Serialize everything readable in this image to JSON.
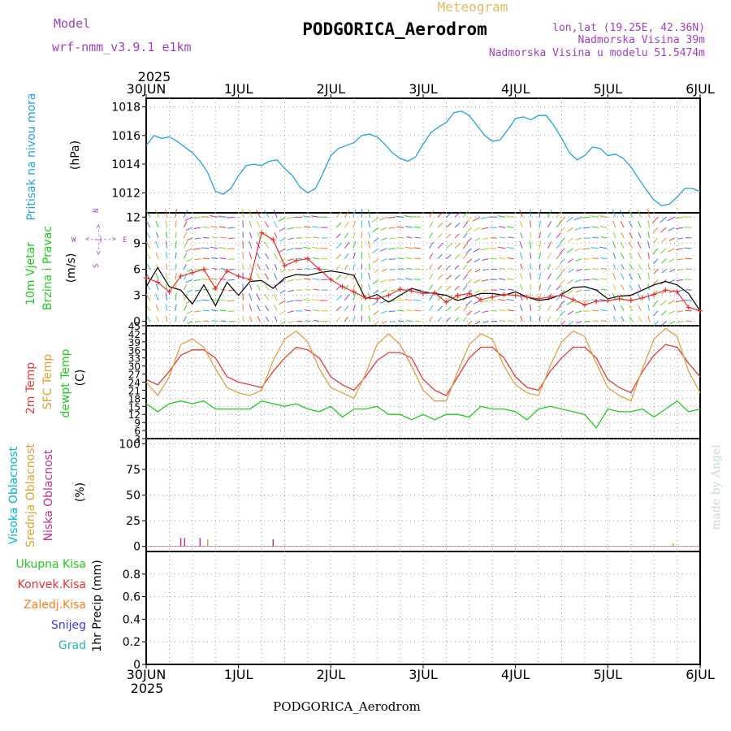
{
  "header": {
    "model_label": "Model",
    "model_name": "wrf-nmm_v3.9.1 e1km",
    "product": "Meteogram",
    "station": "PODGORICA_Aerodrom",
    "lonlat": "lon,lat (19.25E, 42.36N)",
    "elevation": "Nadmorska Visina 39m",
    "model_elevation": "Nadmorska Visina u modelu 51.5474m"
  },
  "footer": {
    "station": "PODGORICA_Aerodrom",
    "credit": "made by Angel"
  },
  "time_axis": {
    "year": "2025",
    "labels": [
      "30JUN",
      "1JUL",
      "2JUL",
      "3JUL",
      "4JUL",
      "5JUL",
      "6JUL"
    ]
  },
  "panels": {
    "pressure": {
      "title": "Pritisak na nivou mora",
      "unit": "(hPa)"
    },
    "wind": {
      "title_1": "10m Vjetar",
      "title_2": "Brzina i Pravac",
      "unit": "(m/s)",
      "compass": {
        "n": "N",
        "s": "S",
        "e": "E",
        "w": "W",
        "arrow_h": "<--|-->",
        "arrow_v": "<--|-->"
      }
    },
    "temp": {
      "title_1": "2m Temp",
      "title_2": "SFC Temp",
      "title_3": "dewpt Temp",
      "unit": "(C)"
    },
    "cloud": {
      "title_1": "Visoka Oblacnost",
      "title_2": "Srednja Oblacnost",
      "title_3": "Niska Oblacnost",
      "unit": "(%)"
    },
    "precip": {
      "legend": [
        "Ukupna Kisa",
        "Konvek.Kisa",
        "Zaledj.Kisa",
        "Snijeg",
        "Grad"
      ],
      "unit": "1hr Precip (mm)"
    }
  },
  "colors": {
    "pressure": "#1fa3e0",
    "wind_speed": "#000000",
    "wind_gust": "#e83030",
    "t2m": "#e63a3a",
    "tsfc": "#e0a040",
    "dewpt": "#22c822",
    "cloud_high": "#00b5d0",
    "cloud_mid": "#e0a030",
    "cloud_low": "#c0308a",
    "rain": "#22c822",
    "conv": "#e83030",
    "frz": "#f08020",
    "snow": "#3a3ae0",
    "hail": "#20b8b0",
    "model": "#a040c0",
    "station": "#000000",
    "product": "#e8b860",
    "info": "#a040c0"
  },
  "chart_data": [
    {
      "type": "line",
      "title": "Pritisak na nivou mora",
      "ylabel": "(hPa)",
      "x_unit": "hours since 30JUN 00UTC",
      "ylim": [
        1010.6,
        1018.6
      ],
      "yticks": [
        1012,
        1014,
        1016,
        1018
      ],
      "series": [
        {
          "color": "#1fa3e0",
          "x": [
            0,
            2,
            4,
            6,
            8,
            10,
            12,
            14,
            16,
            18,
            20,
            22,
            24,
            26,
            28,
            30,
            32,
            34,
            36,
            38,
            40,
            42,
            44,
            46,
            48,
            50,
            52,
            54,
            56,
            58,
            60,
            62,
            64,
            66,
            68,
            70,
            72,
            74,
            76,
            78,
            80,
            82,
            84,
            86,
            88,
            90,
            92,
            94,
            96,
            98,
            100,
            102,
            104,
            106,
            108,
            110,
            112,
            114,
            116,
            118,
            120,
            122,
            124,
            126,
            128,
            130,
            132,
            134,
            136,
            138,
            140,
            142,
            144
          ],
          "y": [
            1015.3,
            1016.0,
            1015.8,
            1015.9,
            1015.6,
            1015.2,
            1014.8,
            1014.2,
            1013.4,
            1012.1,
            1011.9,
            1012.3,
            1013.2,
            1013.9,
            1014.0,
            1013.9,
            1014.2,
            1014.3,
            1013.7,
            1013.2,
            1012.4,
            1012.0,
            1012.3,
            1013.4,
            1014.6,
            1015.1,
            1015.3,
            1015.5,
            1016.0,
            1016.1,
            1015.9,
            1015.4,
            1014.8,
            1014.4,
            1014.2,
            1014.5,
            1015.4,
            1016.2,
            1016.6,
            1016.9,
            1017.6,
            1017.7,
            1017.4,
            1016.7,
            1016.0,
            1015.6,
            1015.7,
            1016.4,
            1017.2,
            1017.3,
            1017.1,
            1017.4,
            1017.4,
            1016.7,
            1015.8,
            1014.8,
            1014.3,
            1014.6,
            1015.2,
            1015.1,
            1014.6,
            1014.7,
            1014.4,
            1013.8,
            1013.0,
            1012.2,
            1011.5,
            1011.1,
            1011.2,
            1011.7,
            1012.3,
            1012.3,
            1012.1
          ]
        }
      ]
    },
    {
      "type": "line",
      "title": "10m Vjetar Brzina i Pravac",
      "ylabel": "(m/s)",
      "x_unit": "hours since 30JUN 00UTC",
      "ylim": [
        -0.5,
        12.5
      ],
      "yticks": [
        0,
        3,
        6,
        9,
        12
      ],
      "series": [
        {
          "name": "speed",
          "color": "#000000",
          "x": [
            0,
            3,
            6,
            9,
            12,
            15,
            18,
            21,
            24,
            27,
            30,
            33,
            36,
            39,
            42,
            45,
            48,
            51,
            54,
            57,
            60,
            63,
            66,
            69,
            72,
            75,
            78,
            81,
            84,
            87,
            90,
            93,
            96,
            99,
            102,
            105,
            108,
            111,
            114,
            117,
            120,
            123,
            126,
            129,
            132,
            135,
            138,
            141,
            144
          ],
          "y": [
            4.0,
            6.2,
            4.0,
            3.6,
            2.0,
            4.2,
            1.8,
            4.5,
            3.0,
            4.6,
            4.7,
            3.8,
            5.0,
            5.4,
            5.3,
            5.6,
            5.8,
            5.6,
            5.3,
            2.6,
            3.1,
            2.2,
            3.0,
            3.8,
            3.4,
            3.2,
            3.0,
            2.4,
            2.8,
            3.2,
            3.2,
            3.0,
            3.4,
            2.8,
            2.4,
            2.6,
            3.1,
            3.9,
            4.0,
            3.6,
            2.6,
            2.9,
            3.0,
            3.6,
            4.2,
            4.6,
            4.2,
            3.2,
            1.2
          ]
        },
        {
          "name": "gust",
          "color": "#e83030",
          "x": [
            0,
            3,
            6,
            9,
            12,
            15,
            18,
            21,
            24,
            27,
            30,
            33,
            36,
            39,
            42,
            45,
            48,
            51,
            54,
            57,
            60,
            63,
            66,
            69,
            72,
            75,
            78,
            81,
            84,
            87,
            90,
            93,
            96,
            99,
            102,
            105,
            108,
            111,
            114,
            117,
            120,
            123,
            126,
            129,
            132,
            135,
            138,
            141,
            144
          ],
          "y": [
            5.0,
            4.5,
            3.4,
            5.2,
            5.6,
            6.0,
            3.8,
            5.8,
            5.2,
            4.8,
            10.2,
            9.4,
            6.4,
            7.0,
            7.2,
            6.0,
            4.8,
            4.0,
            3.4,
            2.7,
            2.6,
            3.0,
            3.7,
            3.5,
            3.2,
            3.3,
            2.2,
            3.0,
            3.2,
            2.5,
            2.8,
            3.1,
            3.0,
            2.8,
            2.6,
            2.8,
            3.0,
            2.5,
            1.9,
            2.3,
            2.4,
            2.6,
            2.4,
            2.7,
            3.1,
            3.6,
            3.4,
            1.6,
            1.2
          ]
        }
      ]
    },
    {
      "type": "line",
      "title": "2m Temp / SFC Temp / dewpt Temp",
      "ylabel": "(C)",
      "x_unit": "hours since 30JUN 00UTC",
      "ylim": [
        3,
        45
      ],
      "yticks": [
        3,
        6,
        9,
        12,
        15,
        18,
        21,
        24,
        27,
        30,
        33,
        36,
        39,
        42,
        45
      ],
      "series": [
        {
          "name": "2m Temp",
          "color": "#e63a3a",
          "x": [
            0,
            3,
            6,
            9,
            12,
            15,
            18,
            21,
            24,
            27,
            30,
            33,
            36,
            39,
            42,
            45,
            48,
            51,
            54,
            57,
            60,
            63,
            66,
            69,
            72,
            75,
            78,
            81,
            84,
            87,
            90,
            93,
            96,
            99,
            102,
            105,
            108,
            111,
            114,
            117,
            120,
            123,
            126,
            129,
            132,
            135,
            138,
            141,
            144
          ],
          "y": [
            25,
            23,
            28,
            34,
            36,
            36,
            33,
            26,
            24,
            23,
            22,
            28,
            33,
            37,
            36,
            33,
            26,
            23,
            21,
            26,
            32,
            35,
            35,
            33,
            25,
            21,
            19,
            26,
            33,
            37,
            37,
            33,
            26,
            22,
            21,
            28,
            33,
            37,
            37,
            33,
            25,
            22,
            20,
            28,
            34,
            38,
            37,
            31,
            26
          ]
        },
        {
          "name": "SFC Temp",
          "color": "#e0a040",
          "x": [
            0,
            3,
            6,
            9,
            12,
            15,
            18,
            21,
            24,
            27,
            30,
            33,
            36,
            39,
            42,
            45,
            48,
            51,
            54,
            57,
            60,
            63,
            66,
            69,
            72,
            75,
            78,
            81,
            84,
            87,
            90,
            93,
            96,
            99,
            102,
            105,
            108,
            111,
            114,
            117,
            120,
            123,
            126,
            129,
            132,
            135,
            138,
            141,
            144
          ],
          "y": [
            24,
            19,
            26,
            38,
            40,
            37,
            29,
            22,
            20,
            19,
            21,
            32,
            40,
            43,
            39,
            29,
            22,
            20,
            18,
            27,
            38,
            42,
            38,
            30,
            21,
            17,
            17,
            28,
            38,
            42,
            40,
            30,
            23,
            20,
            19,
            30,
            39,
            43,
            41,
            31,
            22,
            19,
            17,
            29,
            40,
            44,
            41,
            28,
            20
          ]
        },
        {
          "name": "dewpt Temp",
          "color": "#22c822",
          "x": [
            0,
            3,
            6,
            9,
            12,
            15,
            18,
            21,
            24,
            27,
            30,
            33,
            36,
            39,
            42,
            45,
            48,
            51,
            54,
            57,
            60,
            63,
            66,
            69,
            72,
            75,
            78,
            81,
            84,
            87,
            90,
            93,
            96,
            99,
            102,
            105,
            108,
            111,
            114,
            117,
            120,
            123,
            126,
            129,
            132,
            135,
            138,
            141,
            144
          ],
          "y": [
            16,
            13,
            16,
            17,
            16,
            17,
            14,
            14,
            14,
            14,
            17,
            16,
            15,
            16,
            14,
            13,
            15,
            11,
            14,
            14,
            15,
            12,
            12,
            10,
            12,
            10,
            12,
            12,
            11,
            15,
            14,
            14,
            13,
            10,
            14,
            15,
            14,
            13,
            12,
            7,
            14,
            13,
            13,
            14,
            11,
            14,
            17,
            13,
            14
          ]
        }
      ]
    },
    {
      "type": "bar",
      "title": "Visoka / Srednja / Niska Oblacnost",
      "ylabel": "(%)",
      "x_unit": "hours since 30JUN 00UTC",
      "ylim": [
        -5,
        105
      ],
      "yticks": [
        0,
        25,
        50,
        75,
        100
      ],
      "series": [
        {
          "name": "Visoka Oblacnost",
          "color": "#00b5d0",
          "x": [],
          "values": []
        },
        {
          "name": "Srednja Oblacnost",
          "color": "#e0a030",
          "x": [
            16,
            137
          ],
          "values": [
            7,
            3
          ]
        },
        {
          "name": "Niska Oblacnost",
          "color": "#c0308a",
          "x": [
            9,
            10,
            14,
            33
          ],
          "values": [
            8,
            8,
            8,
            7
          ]
        }
      ]
    },
    {
      "type": "bar",
      "title": "1hr Precip",
      "ylabel": "(mm)",
      "x_unit": "hours since 30JUN 00UTC",
      "ylim": [
        0,
        1.0
      ],
      "yticks": [
        0,
        0.2,
        0.4,
        0.6,
        0.8
      ],
      "series": [
        {
          "name": "Ukupna Kisa",
          "x": [],
          "values": []
        }
      ]
    }
  ]
}
